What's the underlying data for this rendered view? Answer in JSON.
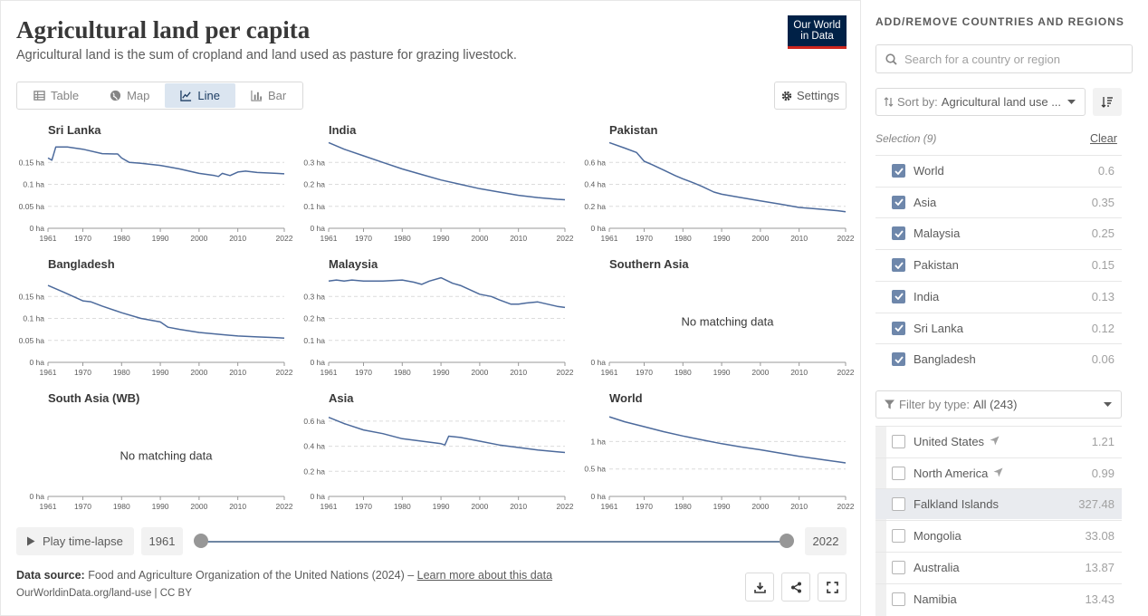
{
  "header": {
    "title": "Agricultural land per capita",
    "subtitle": "Agricultural land is the sum of cropland and land used as pasture for grazing livestock.",
    "logo_line1": "Our World",
    "logo_line2": "in Data"
  },
  "tabs": [
    {
      "label": "Table",
      "icon": "table-icon"
    },
    {
      "label": "Map",
      "icon": "globe-icon"
    },
    {
      "label": "Line",
      "icon": "line-chart-icon",
      "active": true
    },
    {
      "label": "Bar",
      "icon": "bar-chart-icon"
    }
  ],
  "settings_label": "Settings",
  "chart_data": [
    {
      "type": "line",
      "title": "Sri Lanka",
      "x": [
        1961,
        1962,
        1963,
        1966,
        1970,
        1975,
        1979,
        1980,
        1982,
        1985,
        1990,
        1992,
        1995,
        2000,
        2004,
        2005,
        2006,
        2008,
        2010,
        2012,
        2015,
        2020,
        2022
      ],
      "y": [
        0.16,
        0.155,
        0.185,
        0.185,
        0.18,
        0.17,
        0.169,
        0.16,
        0.15,
        0.148,
        0.143,
        0.14,
        0.135,
        0.125,
        0.12,
        0.118,
        0.125,
        0.12,
        0.128,
        0.13,
        0.127,
        0.125,
        0.124
      ],
      "yticks": [
        0,
        0.05,
        0.1,
        0.15
      ],
      "ytick_labels": [
        "0 ha",
        "0.05 ha",
        "0.1 ha",
        "0.15 ha"
      ],
      "ylim": [
        0,
        0.2
      ]
    },
    {
      "type": "line",
      "title": "India",
      "x": [
        1961,
        1965,
        1970,
        1975,
        1980,
        1985,
        1990,
        1995,
        2000,
        2005,
        2010,
        2015,
        2020,
        2022
      ],
      "y": [
        0.39,
        0.36,
        0.33,
        0.3,
        0.27,
        0.245,
        0.22,
        0.2,
        0.18,
        0.165,
        0.15,
        0.14,
        0.132,
        0.13
      ],
      "yticks": [
        0,
        0.1,
        0.2,
        0.3
      ],
      "ytick_labels": [
        "0 ha",
        "0.1 ha",
        "0.2 ha",
        "0.3 ha"
      ],
      "ylim": [
        0,
        0.4
      ]
    },
    {
      "type": "line",
      "title": "Pakistan",
      "x": [
        1961,
        1965,
        1968,
        1970,
        1972,
        1975,
        1978,
        1980,
        1983,
        1985,
        1988,
        1990,
        1995,
        2000,
        2005,
        2010,
        2015,
        2020,
        2022
      ],
      "y": [
        0.78,
        0.73,
        0.69,
        0.61,
        0.58,
        0.53,
        0.48,
        0.45,
        0.41,
        0.38,
        0.33,
        0.31,
        0.28,
        0.25,
        0.22,
        0.19,
        0.175,
        0.16,
        0.15
      ],
      "yticks": [
        0,
        0.2,
        0.4,
        0.6
      ],
      "ytick_labels": [
        "0 ha",
        "0.2 ha",
        "0.4 ha",
        "0.6 ha"
      ],
      "ylim": [
        0,
        0.8
      ]
    },
    {
      "type": "line",
      "title": "Bangladesh",
      "x": [
        1961,
        1965,
        1970,
        1972,
        1975,
        1980,
        1985,
        1990,
        1992,
        1995,
        2000,
        2005,
        2010,
        2015,
        2020,
        2022
      ],
      "y": [
        0.175,
        0.16,
        0.14,
        0.138,
        0.128,
        0.113,
        0.1,
        0.092,
        0.08,
        0.075,
        0.068,
        0.064,
        0.06,
        0.058,
        0.056,
        0.055
      ],
      "yticks": [
        0,
        0.05,
        0.1,
        0.15
      ],
      "ytick_labels": [
        "0 ha",
        "0.05 ha",
        "0.1 ha",
        "0.15 ha"
      ],
      "ylim": [
        0,
        0.2
      ]
    },
    {
      "type": "line",
      "title": "Malaysia",
      "x": [
        1961,
        1963,
        1965,
        1967,
        1970,
        1975,
        1980,
        1983,
        1985,
        1987,
        1990,
        1993,
        1995,
        2000,
        2003,
        2005,
        2008,
        2010,
        2012,
        2015,
        2020,
        2022
      ],
      "y": [
        0.37,
        0.375,
        0.37,
        0.375,
        0.37,
        0.37,
        0.375,
        0.365,
        0.355,
        0.37,
        0.385,
        0.36,
        0.35,
        0.31,
        0.3,
        0.285,
        0.265,
        0.265,
        0.27,
        0.275,
        0.255,
        0.25
      ],
      "yticks": [
        0,
        0.1,
        0.2,
        0.3
      ],
      "ytick_labels": [
        "0 ha",
        "0.1 ha",
        "0.2 ha",
        "0.3 ha"
      ],
      "ylim": [
        0,
        0.4
      ]
    },
    {
      "type": "line",
      "title": "Southern Asia",
      "x": [],
      "y": [],
      "message": "No matching data",
      "yticks": [
        0
      ],
      "ytick_labels": [
        "0 ha"
      ],
      "ylim": [
        0,
        1
      ]
    },
    {
      "type": "line",
      "title": "South Asia (WB)",
      "x": [],
      "y": [],
      "message": "No matching data",
      "yticks": [
        0
      ],
      "ytick_labels": [
        "0 ha"
      ],
      "ylim": [
        0,
        1
      ]
    },
    {
      "type": "line",
      "title": "Asia",
      "x": [
        1961,
        1965,
        1970,
        1975,
        1980,
        1985,
        1990,
        1991,
        1992,
        1995,
        2000,
        2005,
        2010,
        2015,
        2020,
        2022
      ],
      "y": [
        0.63,
        0.58,
        0.53,
        0.5,
        0.46,
        0.44,
        0.42,
        0.41,
        0.48,
        0.47,
        0.44,
        0.41,
        0.39,
        0.37,
        0.355,
        0.35
      ],
      "yticks": [
        0,
        0.2,
        0.4,
        0.6
      ],
      "ytick_labels": [
        "0 ha",
        "0.2 ha",
        "0.4 ha",
        "0.6 ha"
      ],
      "ylim": [
        0,
        0.7
      ]
    },
    {
      "type": "line",
      "title": "World",
      "x": [
        1961,
        1965,
        1970,
        1975,
        1980,
        1985,
        1990,
        1995,
        2000,
        2005,
        2010,
        2015,
        2020,
        2022
      ],
      "y": [
        1.45,
        1.36,
        1.27,
        1.18,
        1.1,
        1.03,
        0.96,
        0.9,
        0.85,
        0.79,
        0.73,
        0.68,
        0.63,
        0.61
      ],
      "yticks": [
        0,
        0.5,
        1
      ],
      "ytick_labels": [
        "0 ha",
        "0.5 ha",
        "1 ha"
      ],
      "ylim": [
        0,
        1.6
      ]
    }
  ],
  "x_axis": {
    "ticks": [
      1961,
      1970,
      1980,
      1990,
      2000,
      2010,
      2022
    ],
    "tick_labels": [
      "1961",
      "1970",
      "1980",
      "1990",
      "2000",
      "2010",
      "2022"
    ],
    "range": [
      1961,
      2022
    ]
  },
  "timeline": {
    "play_label": "Play time-lapse",
    "start_year": "1961",
    "end_year": "2022"
  },
  "footer": {
    "source_label": "Data source:",
    "source_text": "Food and Agriculture Organization of the United Nations (2024) –",
    "learn_more": "Learn more about this data",
    "url_license": "OurWorldinData.org/land-use | CC BY"
  },
  "sidebar": {
    "heading": "ADD/REMOVE COUNTRIES AND REGIONS",
    "search_placeholder": "Search for a country or region",
    "sort_label": "Sort by:",
    "sort_value": "Agricultural land use ...",
    "selection_label": "Selection (9)",
    "clear_label": "Clear",
    "selected": [
      {
        "name": "World",
        "value": "0.6"
      },
      {
        "name": "Asia",
        "value": "0.35"
      },
      {
        "name": "Malaysia",
        "value": "0.25"
      },
      {
        "name": "Pakistan",
        "value": "0.15"
      },
      {
        "name": "India",
        "value": "0.13"
      },
      {
        "name": "Sri Lanka",
        "value": "0.12"
      },
      {
        "name": "Bangladesh",
        "value": "0.06"
      }
    ],
    "filter_label": "Filter by type:",
    "filter_value": "All (243)",
    "available": [
      {
        "name": "United States",
        "value": "1.21",
        "locate": true
      },
      {
        "name": "North America",
        "value": "0.99",
        "locate": true
      },
      {
        "name": "Falkland Islands",
        "value": "327.48",
        "highlight": true
      },
      {
        "name": "Mongolia",
        "value": "33.08"
      },
      {
        "name": "Australia",
        "value": "13.87"
      },
      {
        "name": "Namibia",
        "value": "13.43"
      }
    ]
  },
  "colors": {
    "line": "#4c6a9c",
    "accent_tab_bg": "#dbe5f0",
    "checkbox": "#6e87ab",
    "logo_bg": "#002147",
    "logo_bar": "#ce261e"
  }
}
